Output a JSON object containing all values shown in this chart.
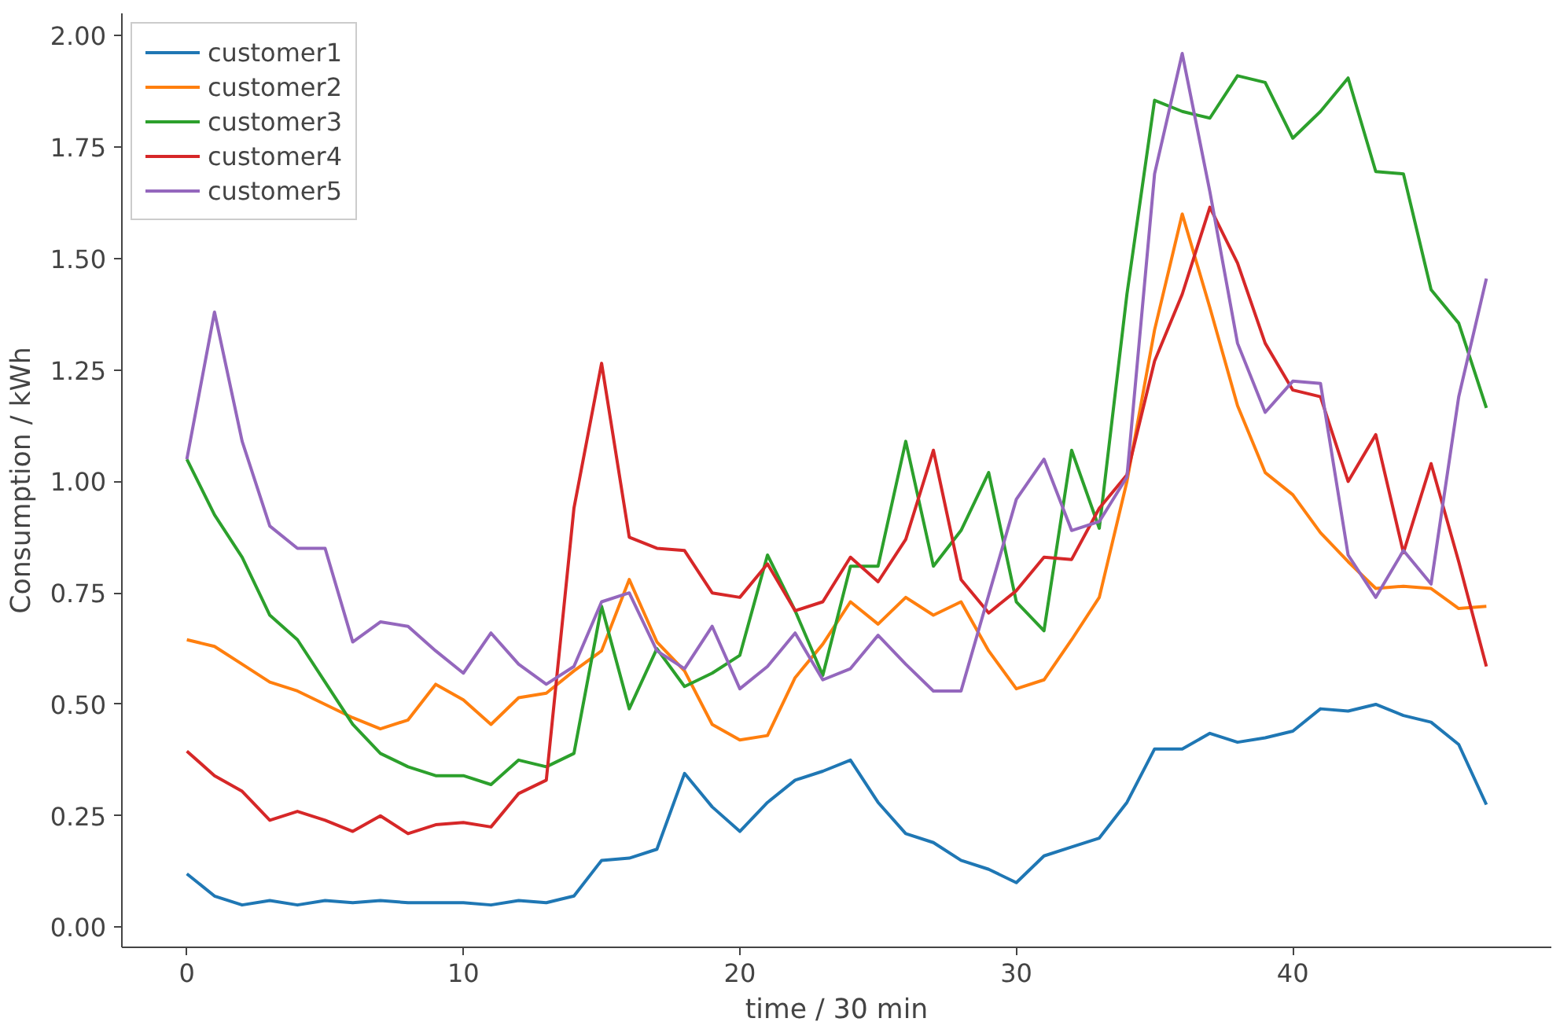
{
  "chart_data": {
    "type": "line",
    "xlabel": "time / 30 min",
    "ylabel": "Consumption / kWh",
    "x": [
      0,
      1,
      2,
      3,
      4,
      5,
      6,
      7,
      8,
      9,
      10,
      11,
      12,
      13,
      14,
      15,
      16,
      17,
      18,
      19,
      20,
      21,
      22,
      23,
      24,
      25,
      26,
      27,
      28,
      29,
      30,
      31,
      32,
      33,
      34,
      35,
      36,
      37,
      38,
      39,
      40,
      41,
      42,
      43,
      44,
      45,
      46,
      47
    ],
    "xlim": [
      -2.35,
      49.35
    ],
    "xticks": [
      0,
      10,
      20,
      30,
      40
    ],
    "ylim": [
      -0.045,
      2.05
    ],
    "yticks": [
      {
        "value": 0,
        "label": "0.00"
      },
      {
        "value": 0.25,
        "label": "0.25"
      },
      {
        "value": 0.5,
        "label": "0.50"
      },
      {
        "value": 0.75,
        "label": "0.75"
      },
      {
        "value": 1,
        "label": "1.00"
      },
      {
        "value": 1.25,
        "label": "1.25"
      },
      {
        "value": 1.5,
        "label": "1.50"
      },
      {
        "value": 1.75,
        "label": "1.75"
      },
      {
        "value": 2,
        "label": "2.00"
      }
    ],
    "grid": false,
    "legend": "top left",
    "marker": "none",
    "line_style": "solid",
    "series": [
      {
        "name": "customer1",
        "color": "#1f77b4",
        "values": [
          0.12,
          0.07,
          0.05,
          0.06,
          0.05,
          0.06,
          0.055,
          0.06,
          0.055,
          0.055,
          0.055,
          0.05,
          0.06,
          0.055,
          0.07,
          0.15,
          0.155,
          0.175,
          0.345,
          0.27,
          0.215,
          0.28,
          0.33,
          0.35,
          0.375,
          0.28,
          0.21,
          0.19,
          0.15,
          0.13,
          0.1,
          0.16,
          0.18,
          0.2,
          0.28,
          0.4,
          0.4,
          0.435,
          0.415,
          0.425,
          0.44,
          0.49,
          0.485,
          0.5,
          0.475,
          0.46,
          0.41,
          0.275
        ]
      },
      {
        "name": "customer2",
        "color": "#ff7f0e",
        "values": [
          0.645,
          0.63,
          0.59,
          0.55,
          0.53,
          0.5,
          0.47,
          0.445,
          0.465,
          0.545,
          0.51,
          0.455,
          0.515,
          0.525,
          0.575,
          0.62,
          0.78,
          0.64,
          0.575,
          0.455,
          0.42,
          0.43,
          0.56,
          0.635,
          0.73,
          0.68,
          0.74,
          0.7,
          0.73,
          0.62,
          0.535,
          0.555,
          0.645,
          0.74,
          1.0,
          1.34,
          1.6,
          1.39,
          1.17,
          1.02,
          0.97,
          0.885,
          0.82,
          0.76,
          0.765,
          0.76,
          0.715,
          0.72
        ]
      },
      {
        "name": "customer3",
        "color": "#2ca02c",
        "values": [
          1.05,
          0.925,
          0.83,
          0.7,
          0.645,
          0.55,
          0.455,
          0.39,
          0.36,
          0.34,
          0.34,
          0.32,
          0.375,
          0.36,
          0.39,
          0.72,
          0.49,
          0.625,
          0.54,
          0.57,
          0.61,
          0.835,
          0.71,
          0.565,
          0.81,
          0.81,
          1.09,
          0.81,
          0.89,
          1.02,
          0.73,
          0.665,
          1.07,
          0.895,
          1.42,
          1.855,
          1.83,
          1.815,
          1.91,
          1.895,
          1.77,
          1.83,
          1.905,
          1.695,
          1.69,
          1.43,
          1.355,
          1.165
        ]
      },
      {
        "name": "customer4",
        "color": "#d62728",
        "values": [
          0.395,
          0.34,
          0.305,
          0.24,
          0.26,
          0.24,
          0.215,
          0.25,
          0.21,
          0.23,
          0.235,
          0.225,
          0.3,
          0.33,
          0.94,
          1.265,
          0.875,
          0.85,
          0.845,
          0.75,
          0.74,
          0.815,
          0.71,
          0.73,
          0.83,
          0.775,
          0.87,
          1.07,
          0.78,
          0.705,
          0.755,
          0.83,
          0.825,
          0.94,
          1.015,
          1.27,
          1.42,
          1.615,
          1.49,
          1.31,
          1.205,
          1.19,
          1.0,
          1.105,
          0.84,
          1.04,
          0.82,
          0.585
        ]
      },
      {
        "name": "customer5",
        "color": "#9467bd",
        "values": [
          1.05,
          1.38,
          1.09,
          0.9,
          0.85,
          0.85,
          0.64,
          0.685,
          0.675,
          0.62,
          0.57,
          0.66,
          0.59,
          0.545,
          0.585,
          0.73,
          0.75,
          0.62,
          0.58,
          0.675,
          0.535,
          0.585,
          0.66,
          0.555,
          0.58,
          0.655,
          0.59,
          0.53,
          0.53,
          0.745,
          0.96,
          1.05,
          0.89,
          0.91,
          1.01,
          1.69,
          1.96,
          1.65,
          1.31,
          1.155,
          1.225,
          1.22,
          0.835,
          0.74,
          0.845,
          0.77,
          1.19,
          1.455
        ]
      }
    ]
  }
}
